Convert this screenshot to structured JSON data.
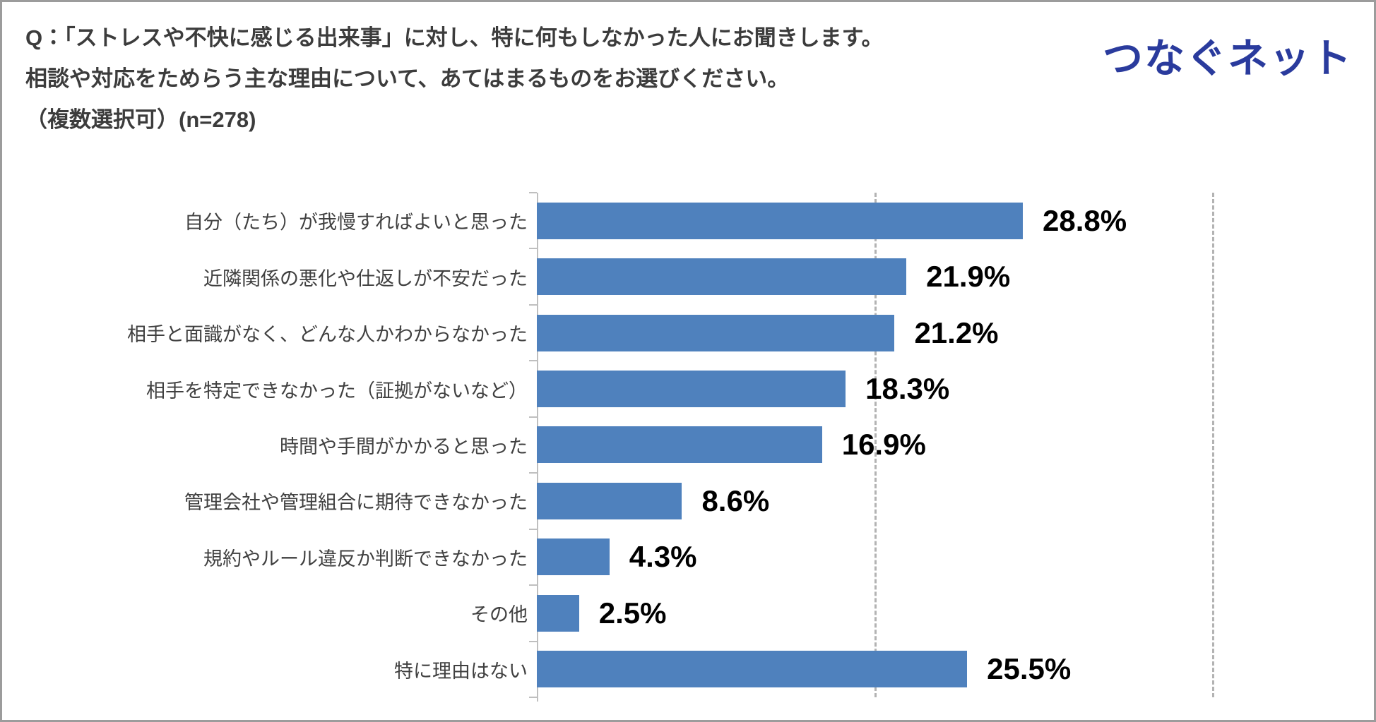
{
  "header": {
    "question_line1": "Q：「ストレスや不快に感じる出来事」に対し、特に何もしなかった人にお聞きします。",
    "question_line2": "相談や対応をためらう主な理由について、あてはまるものをお選びください。",
    "note": "（複数選択可）(n=278)"
  },
  "logo": {
    "text": "つなぐネット",
    "color": "#2a3b9d"
  },
  "chart_data": {
    "type": "bar",
    "orientation": "horizontal",
    "title": "相談や対応をためらう主な理由",
    "n": 278,
    "categories": [
      "自分（たち）が我慢すればよいと思った",
      "近隣関係の悪化や仕返しが不安だった",
      "相手と面識がなく、どんな人かわからなかった",
      "相手を特定できなかった（証拠がないなど）",
      "時間や手間がかかると思った",
      "管理会社や管理組合に期待できなかった",
      "規約やルール違反か判断できなかった",
      "その他",
      "特に理由はない"
    ],
    "values": [
      28.8,
      21.9,
      21.2,
      18.3,
      16.9,
      8.6,
      4.3,
      2.5,
      25.5
    ],
    "value_labels": [
      "28.8%",
      "21.9%",
      "21.2%",
      "18.3%",
      "16.9%",
      "8.6%",
      "4.3%",
      "2.5%",
      "25.5%"
    ],
    "xlim": [
      0,
      45
    ],
    "gridlines": [
      20,
      40
    ],
    "grid_style": "dashed-vertical",
    "bar_color": "#4f81bd",
    "axis_color": "#bfbfbf",
    "legend": "none"
  }
}
